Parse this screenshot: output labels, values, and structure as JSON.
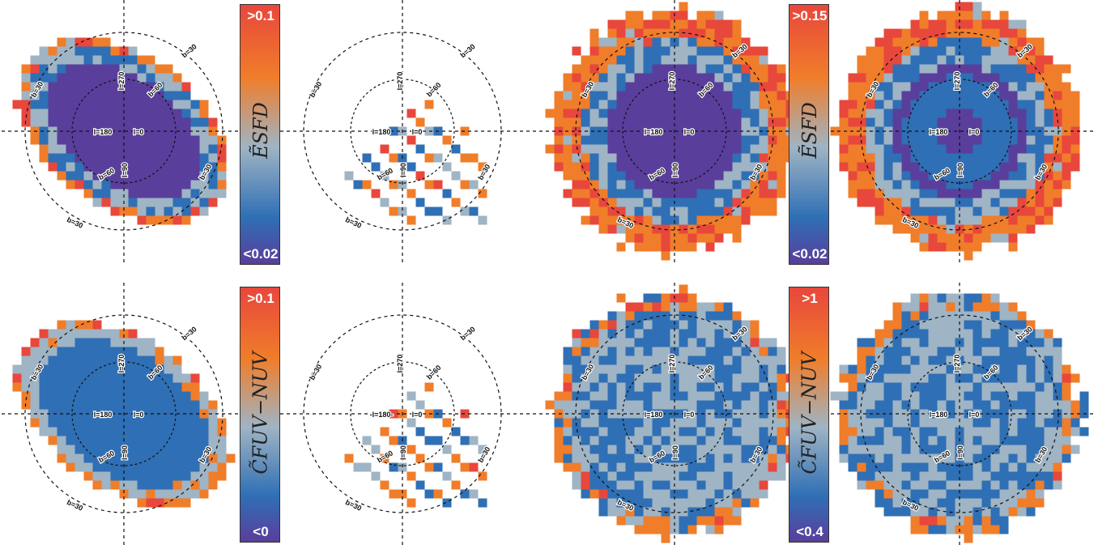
{
  "colors": {
    "low": "#5a3e9c",
    "blue": "#2f6fb5",
    "light": "#9fb4c4",
    "mid": "#f07d2a",
    "high": "#e8473c",
    "contour": "#111111"
  },
  "colorbars": [
    {
      "id": "top-left",
      "max_label": ">0.1",
      "min_label": "<0.02",
      "title": "ẼSFD"
    },
    {
      "id": "top-right",
      "max_label": ">0.15",
      "min_label": "<0.02",
      "title": "ẼSFD"
    },
    {
      "id": "bottom-left",
      "max_label": ">0.1",
      "min_label": "<0",
      "title": "C̃FUV−NUV"
    },
    {
      "id": "bottom-right",
      "max_label": ">1",
      "min_label": "<0.4",
      "title": "C̃FUV−NUV"
    }
  ],
  "panels": [
    {
      "id": "row1-panel1",
      "variant": "ellipse",
      "palette": "extinction",
      "labels": {
        "b30_a": "b=30",
        "b30_b": "b=30",
        "b30_c": "b=30",
        "b30_d": "b=30",
        "b60_a": "b=60",
        "b60_b": "b=60",
        "l270": "l=270",
        "l180": "l=180",
        "l0": "l=0",
        "l90": "l=90"
      }
    },
    {
      "id": "row1-panel2",
      "variant": "stripe",
      "palette": "extinction",
      "labels": {
        "b30_a": "b=30",
        "b30_b": "b=30",
        "b30_c": "b=30",
        "b30_d": "b=30",
        "b60_a": "b=60",
        "b60_b": "b=60",
        "l270": "l=270",
        "l180": "l=180",
        "l0": "l=0",
        "l90": "l=90"
      }
    },
    {
      "id": "row1-panel3",
      "variant": "disk",
      "palette": "extinction",
      "labels": {
        "b30_a": "b=30",
        "b30_b": "b=30",
        "b30_c": "b=30",
        "b30_d": "b=30",
        "b60_a": "b=60",
        "b60_b": "b=60",
        "l270": "l=270",
        "l180": "l=180",
        "l0": "l=0",
        "l90": "l=90"
      }
    },
    {
      "id": "row1-panel4",
      "variant": "disk",
      "palette": "extinction",
      "labels": {
        "b30_a": "b=30",
        "b30_b": "b=30",
        "b30_c": "b=30",
        "b30_d": "b=30",
        "b60_a": "b=60",
        "b60_b": "b=60",
        "l270": "l=270",
        "l180": "l=180",
        "l0": "l=0",
        "l90": "l=90"
      }
    },
    {
      "id": "row2-panel1",
      "variant": "ellipse",
      "palette": "color",
      "labels": {
        "b30_a": "b=30",
        "b30_b": "b=30",
        "b30_c": "b=30",
        "b30_d": "b=30",
        "b60_a": "b=60",
        "b60_b": "b=60",
        "l270": "l=270",
        "l180": "l=180",
        "l0": "l=0",
        "l90": "l=90"
      }
    },
    {
      "id": "row2-panel2",
      "variant": "stripe",
      "palette": "color",
      "labels": {
        "b30_a": "b=30",
        "b30_b": "b=30",
        "b30_c": "b=30",
        "b30_d": "b=30",
        "b60_a": "b=60",
        "b60_b": "b=60",
        "l270": "l=270",
        "l180": "-l=180-",
        "l0": "l=0",
        "l90": "l=90"
      }
    },
    {
      "id": "row2-panel3",
      "variant": "disk",
      "palette": "color",
      "labels": {
        "b30_a": "b=30",
        "b30_b": "b=30",
        "b30_c": "b=30",
        "b30_d": "b=30",
        "b60_a": "b=60",
        "b60_b": "b=60",
        "l270": "l=270",
        "l180": "l=180",
        "l0": "l=0",
        "l90": "l=90"
      }
    },
    {
      "id": "row2-panel4",
      "variant": "disk",
      "palette": "color",
      "labels": {
        "b30_a": "b=30",
        "b30_b": "b=30",
        "b30_c": "b=30",
        "b30_d": "b=30",
        "b60_a": "b=60",
        "b60_b": "b=60",
        "l270": "l=270",
        "l180": "l=180",
        "l0": "l=0",
        "l90": "l=90"
      }
    }
  ]
}
